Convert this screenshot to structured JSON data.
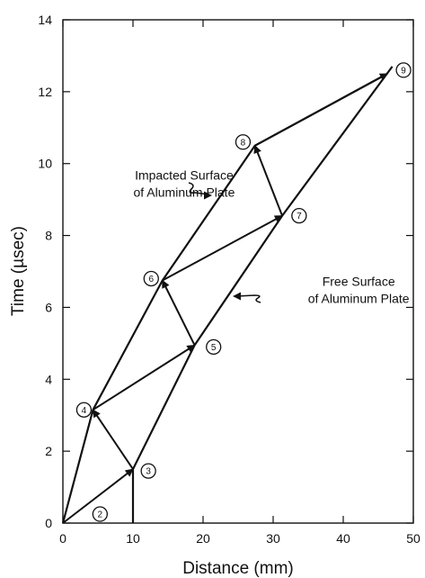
{
  "chart_data": {
    "type": "line",
    "xlabel": "Distance (mm)",
    "ylabel": "Time (µsec)",
    "xlim": [
      0,
      50
    ],
    "ylim": [
      0,
      14
    ],
    "xticks": [
      0,
      10,
      20,
      30,
      40,
      50
    ],
    "yticks": [
      0,
      2,
      4,
      6,
      8,
      10,
      12,
      14
    ],
    "grid": false,
    "series": [
      {
        "name": "Impacted Surface of Aluminum Plate",
        "points": [
          [
            0,
            0
          ],
          [
            4.3,
            3.15
          ],
          [
            14.2,
            6.75
          ],
          [
            27.4,
            10.5
          ],
          [
            46.3,
            12.5
          ]
        ]
      },
      {
        "name": "Free Surface of Aluminum Plate",
        "points": [
          [
            10,
            0
          ],
          [
            10,
            1.5
          ],
          [
            18.8,
            4.95
          ],
          [
            31.3,
            8.55
          ],
          [
            47,
            12.7
          ]
        ]
      }
    ],
    "wave_path": [
      [
        0,
        0
      ],
      [
        10,
        1.5
      ],
      [
        4.3,
        3.15
      ],
      [
        18.8,
        4.95
      ],
      [
        14.2,
        6.75
      ],
      [
        31.3,
        8.55
      ],
      [
        27.4,
        10.5
      ],
      [
        46.3,
        12.5
      ]
    ],
    "labeled_points": [
      {
        "label": "2",
        "x": 5.3,
        "y": 0.25
      },
      {
        "label": "3",
        "x": 12.2,
        "y": 1.45
      },
      {
        "label": "4",
        "x": 3.0,
        "y": 3.15
      },
      {
        "label": "5",
        "x": 21.5,
        "y": 4.9
      },
      {
        "label": "6",
        "x": 12.6,
        "y": 6.8
      },
      {
        "label": "7",
        "x": 33.7,
        "y": 8.55
      },
      {
        "label": "8",
        "x": 25.7,
        "y": 10.6
      },
      {
        "label": "9",
        "x": 48.6,
        "y": 12.6
      }
    ],
    "annotations": [
      {
        "lines": [
          "Impacted Surface",
          "of Aluminum Plate"
        ],
        "x": 17.3,
        "y": 9.55,
        "target": "Impacted Surface"
      },
      {
        "lines": [
          "Free Surface",
          "of Aluminum Plate"
        ],
        "x": 42.2,
        "y": 6.6,
        "target": "Free Surface"
      }
    ]
  }
}
